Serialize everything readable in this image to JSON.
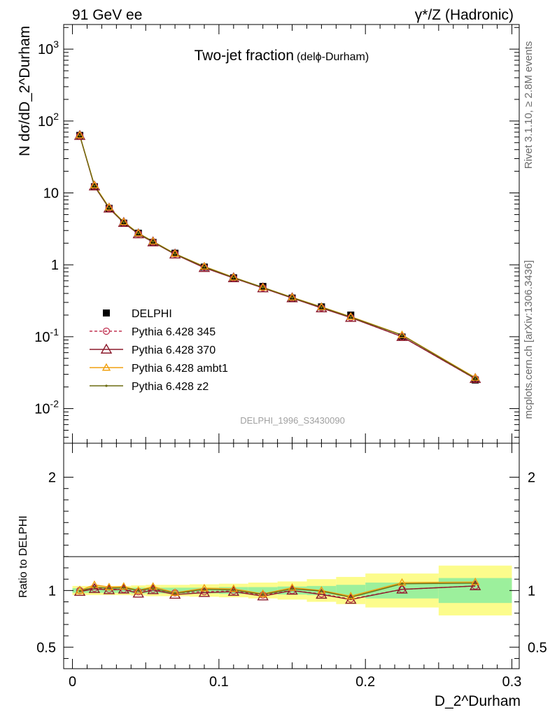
{
  "header": {
    "left": "91 GeV ee",
    "right": "γ*/Z (Hadronic)"
  },
  "side_labels": {
    "rivet": "Rivet 3.1.10, ≥ 2.8M events",
    "mcplots": "mcplots.cern.ch [arXiv:1306.3436]"
  },
  "chart_data": [
    {
      "type": "line",
      "title": "Two-jet fraction",
      "subtitle": "(delϕ-Durham)",
      "ylabel": "N dσ/dD_2^Durham",
      "xlabel": "D_2^Durham",
      "yscale": "log",
      "xlim": [
        -0.006,
        0.305
      ],
      "ylim": [
        0.0033,
        2200
      ],
      "y_tick_labels": [
        "10^-2",
        "10^-1",
        "1",
        "10",
        "10^2",
        "10^3"
      ],
      "y_tick_values": [
        0.01,
        0.1,
        1,
        10,
        100,
        1000
      ],
      "watermark": "DELPHI_1996_S3430090",
      "legend_position": "left-middle",
      "x": [
        0.005,
        0.015,
        0.025,
        0.035,
        0.045,
        0.055,
        0.07,
        0.09,
        0.11,
        0.13,
        0.15,
        0.17,
        0.19,
        0.225,
        0.275
      ],
      "series": [
        {
          "name": "DELPHI",
          "color": "#000000",
          "marker": "square",
          "values": [
            63,
            12.2,
            6.1,
            3.8,
            2.75,
            2.05,
            1.45,
            0.93,
            0.66,
            0.5,
            0.345,
            0.26,
            0.2,
            0.099,
            0.025
          ]
        },
        {
          "name": "Pythia 6.428 345",
          "color": "#c03050",
          "marker": "circle",
          "dashed": true,
          "values": [
            62.5,
            12.4,
            6.15,
            3.85,
            2.72,
            2.08,
            1.42,
            0.92,
            0.655,
            0.48,
            0.345,
            0.252,
            0.185,
            0.1,
            0.026
          ]
        },
        {
          "name": "Pythia 6.428 370",
          "color": "#8b1a2b",
          "marker": "triangle",
          "values": [
            62.5,
            12.4,
            6.1,
            3.85,
            2.68,
            2.07,
            1.4,
            0.91,
            0.655,
            0.475,
            0.345,
            0.25,
            0.184,
            0.1,
            0.026
          ]
        },
        {
          "name": "Pythia 6.428 ambt1",
          "color": "#f0a010",
          "marker": "triangle",
          "values": [
            63.5,
            12.8,
            6.3,
            3.95,
            2.76,
            2.12,
            1.43,
            0.95,
            0.67,
            0.485,
            0.353,
            0.26,
            0.19,
            0.106,
            0.027
          ]
        },
        {
          "name": "Pythia 6.428 z2",
          "color": "#6b6b10",
          "marker": "dot",
          "values": [
            63,
            12.6,
            6.2,
            3.9,
            2.74,
            2.1,
            1.42,
            0.94,
            0.665,
            0.485,
            0.35,
            0.258,
            0.188,
            0.105,
            0.0265
          ]
        }
      ]
    },
    {
      "type": "line",
      "ylabel": "Ratio to DELPHI",
      "ylim": [
        0.31,
        2.3
      ],
      "y_tick_labels": [
        "0.5",
        "1",
        "2"
      ],
      "y_tick_values": [
        0.5,
        1,
        2
      ],
      "x_tick_labels": [
        "0",
        "0.1",
        "0.2",
        "0.3"
      ],
      "x_tick_values": [
        0,
        0.1,
        0.2,
        0.3
      ],
      "bands": {
        "bins": [
          [
            0,
            0.01
          ],
          [
            0.01,
            0.02
          ],
          [
            0.02,
            0.03
          ],
          [
            0.03,
            0.04
          ],
          [
            0.04,
            0.05
          ],
          [
            0.05,
            0.06
          ],
          [
            0.06,
            0.08
          ],
          [
            0.08,
            0.1
          ],
          [
            0.1,
            0.12
          ],
          [
            0.12,
            0.14
          ],
          [
            0.14,
            0.16
          ],
          [
            0.16,
            0.18
          ],
          [
            0.18,
            0.2
          ],
          [
            0.2,
            0.25
          ],
          [
            0.25,
            0.3
          ]
        ],
        "inner": [
          0.02,
          0.02,
          0.02,
          0.02,
          0.025,
          0.025,
          0.025,
          0.025,
          0.03,
          0.03,
          0.035,
          0.04,
          0.05,
          0.07,
          0.11
        ],
        "outer": [
          0.04,
          0.04,
          0.04,
          0.04,
          0.045,
          0.05,
          0.05,
          0.055,
          0.06,
          0.07,
          0.08,
          0.1,
          0.12,
          0.15,
          0.22
        ],
        "inner_color": "#9cf09c",
        "outer_color": "#fcfc8c"
      },
      "series": [
        {
          "name": "Pythia 6.428 345",
          "color": "#c03050",
          "marker": "circle",
          "dashed": true,
          "values": [
            1.0,
            1.02,
            1.01,
            1.01,
            0.99,
            1.01,
            0.98,
            0.99,
            0.995,
            0.96,
            1.0,
            0.97,
            0.925,
            1.01,
            1.04
          ]
        },
        {
          "name": "Pythia 6.428 370",
          "color": "#8b1a2b",
          "marker": "triangle",
          "values": [
            0.99,
            1.015,
            1.005,
            1.01,
            0.975,
            1.005,
            0.965,
            0.98,
            0.99,
            0.95,
            1.0,
            0.965,
            0.92,
            1.01,
            1.04
          ]
        },
        {
          "name": "Pythia 6.428 ambt1",
          "color": "#f0a010",
          "marker": "triangle",
          "values": [
            1.0,
            1.05,
            1.03,
            1.035,
            1.0,
            1.035,
            0.98,
            1.02,
            1.015,
            0.97,
            1.025,
            1.0,
            0.95,
            1.07,
            1.075
          ]
        },
        {
          "name": "Pythia 6.428 z2",
          "color": "#6b6b10",
          "marker": "dot",
          "values": [
            0.995,
            1.03,
            1.02,
            1.025,
            1.0,
            1.02,
            0.975,
            1.01,
            1.005,
            0.965,
            1.015,
            0.995,
            0.94,
            1.06,
            1.065
          ]
        }
      ]
    }
  ]
}
